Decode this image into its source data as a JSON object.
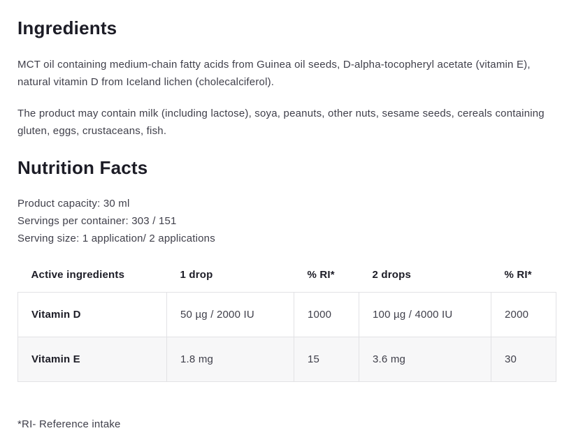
{
  "ingredients": {
    "title": "Ingredients",
    "paragraphs": [
      "MCT oil containing medium-chain fatty acids from Guinea oil seeds, D-alpha-tocopheryl acetate (vitamin E), natural vitamin D from Iceland lichen (cholecalciferol).",
      "The product may contain milk (including lactose), soya, peanuts, other nuts, sesame seeds, cereals containing gluten, eggs, crustaceans, fish."
    ]
  },
  "nutrition": {
    "title": "Nutrition Facts",
    "details": [
      "Product capacity: 30 ml",
      "Servings per container: 303 / 151",
      "Serving size: 1 application/ 2 applications"
    ],
    "table": {
      "headers": [
        "Active ingredients",
        "1 drop",
        "% RI*",
        "2 drops",
        "% RI*"
      ],
      "rows": [
        [
          "Vitamin D",
          "50 µg / 2000 IU",
          "1000",
          "100 µg / 4000 IU",
          "2000"
        ],
        [
          "Vitamin E",
          "1.8 mg",
          "15",
          "3.6 mg",
          "30"
        ]
      ]
    },
    "footnote": "*RI- Reference intake"
  },
  "colors": {
    "heading_text": "#1c1c26",
    "body_text": "#3f3f4a",
    "table_border": "#e2e2e5",
    "alt_row_background": "#f7f7f8",
    "page_background": "#ffffff"
  }
}
